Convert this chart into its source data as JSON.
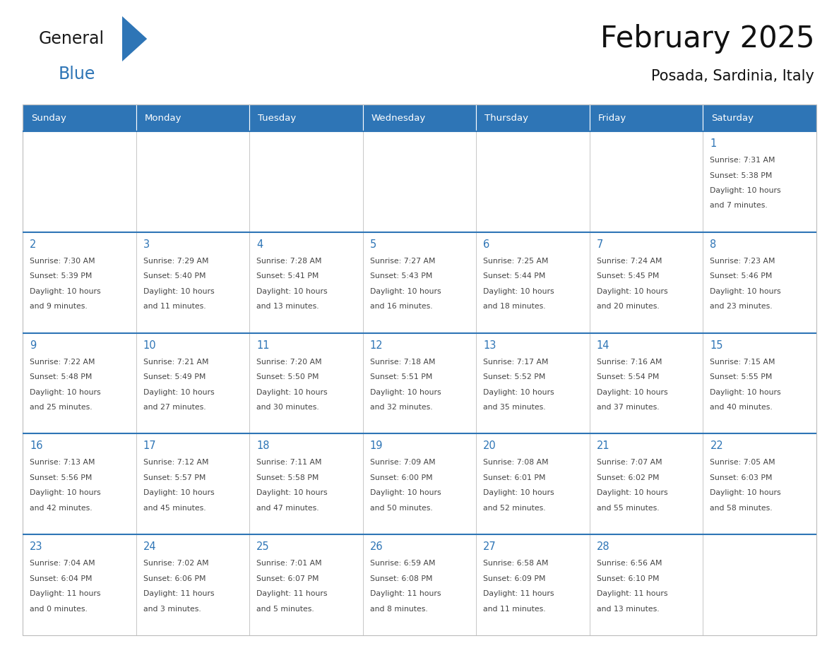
{
  "title": "February 2025",
  "subtitle": "Posada, Sardinia, Italy",
  "days_of_week": [
    "Sunday",
    "Monday",
    "Tuesday",
    "Wednesday",
    "Thursday",
    "Friday",
    "Saturday"
  ],
  "header_bg": "#2e75b6",
  "header_text": "#ffffff",
  "cell_bg": "#ffffff",
  "cell_border": "#bbbbbb",
  "day_number_color": "#2e75b6",
  "text_color": "#444444",
  "logo_general_color": "#1a1a1a",
  "logo_blue_color": "#2e75b6",
  "calendar_data": [
    [
      {
        "day": null,
        "info": null
      },
      {
        "day": null,
        "info": null
      },
      {
        "day": null,
        "info": null
      },
      {
        "day": null,
        "info": null
      },
      {
        "day": null,
        "info": null
      },
      {
        "day": null,
        "info": null
      },
      {
        "day": 1,
        "info": "Sunrise: 7:31 AM\nSunset: 5:38 PM\nDaylight: 10 hours\nand 7 minutes."
      }
    ],
    [
      {
        "day": 2,
        "info": "Sunrise: 7:30 AM\nSunset: 5:39 PM\nDaylight: 10 hours\nand 9 minutes."
      },
      {
        "day": 3,
        "info": "Sunrise: 7:29 AM\nSunset: 5:40 PM\nDaylight: 10 hours\nand 11 minutes."
      },
      {
        "day": 4,
        "info": "Sunrise: 7:28 AM\nSunset: 5:41 PM\nDaylight: 10 hours\nand 13 minutes."
      },
      {
        "day": 5,
        "info": "Sunrise: 7:27 AM\nSunset: 5:43 PM\nDaylight: 10 hours\nand 16 minutes."
      },
      {
        "day": 6,
        "info": "Sunrise: 7:25 AM\nSunset: 5:44 PM\nDaylight: 10 hours\nand 18 minutes."
      },
      {
        "day": 7,
        "info": "Sunrise: 7:24 AM\nSunset: 5:45 PM\nDaylight: 10 hours\nand 20 minutes."
      },
      {
        "day": 8,
        "info": "Sunrise: 7:23 AM\nSunset: 5:46 PM\nDaylight: 10 hours\nand 23 minutes."
      }
    ],
    [
      {
        "day": 9,
        "info": "Sunrise: 7:22 AM\nSunset: 5:48 PM\nDaylight: 10 hours\nand 25 minutes."
      },
      {
        "day": 10,
        "info": "Sunrise: 7:21 AM\nSunset: 5:49 PM\nDaylight: 10 hours\nand 27 minutes."
      },
      {
        "day": 11,
        "info": "Sunrise: 7:20 AM\nSunset: 5:50 PM\nDaylight: 10 hours\nand 30 minutes."
      },
      {
        "day": 12,
        "info": "Sunrise: 7:18 AM\nSunset: 5:51 PM\nDaylight: 10 hours\nand 32 minutes."
      },
      {
        "day": 13,
        "info": "Sunrise: 7:17 AM\nSunset: 5:52 PM\nDaylight: 10 hours\nand 35 minutes."
      },
      {
        "day": 14,
        "info": "Sunrise: 7:16 AM\nSunset: 5:54 PM\nDaylight: 10 hours\nand 37 minutes."
      },
      {
        "day": 15,
        "info": "Sunrise: 7:15 AM\nSunset: 5:55 PM\nDaylight: 10 hours\nand 40 minutes."
      }
    ],
    [
      {
        "day": 16,
        "info": "Sunrise: 7:13 AM\nSunset: 5:56 PM\nDaylight: 10 hours\nand 42 minutes."
      },
      {
        "day": 17,
        "info": "Sunrise: 7:12 AM\nSunset: 5:57 PM\nDaylight: 10 hours\nand 45 minutes."
      },
      {
        "day": 18,
        "info": "Sunrise: 7:11 AM\nSunset: 5:58 PM\nDaylight: 10 hours\nand 47 minutes."
      },
      {
        "day": 19,
        "info": "Sunrise: 7:09 AM\nSunset: 6:00 PM\nDaylight: 10 hours\nand 50 minutes."
      },
      {
        "day": 20,
        "info": "Sunrise: 7:08 AM\nSunset: 6:01 PM\nDaylight: 10 hours\nand 52 minutes."
      },
      {
        "day": 21,
        "info": "Sunrise: 7:07 AM\nSunset: 6:02 PM\nDaylight: 10 hours\nand 55 minutes."
      },
      {
        "day": 22,
        "info": "Sunrise: 7:05 AM\nSunset: 6:03 PM\nDaylight: 10 hours\nand 58 minutes."
      }
    ],
    [
      {
        "day": 23,
        "info": "Sunrise: 7:04 AM\nSunset: 6:04 PM\nDaylight: 11 hours\nand 0 minutes."
      },
      {
        "day": 24,
        "info": "Sunrise: 7:02 AM\nSunset: 6:06 PM\nDaylight: 11 hours\nand 3 minutes."
      },
      {
        "day": 25,
        "info": "Sunrise: 7:01 AM\nSunset: 6:07 PM\nDaylight: 11 hours\nand 5 minutes."
      },
      {
        "day": 26,
        "info": "Sunrise: 6:59 AM\nSunset: 6:08 PM\nDaylight: 11 hours\nand 8 minutes."
      },
      {
        "day": 27,
        "info": "Sunrise: 6:58 AM\nSunset: 6:09 PM\nDaylight: 11 hours\nand 11 minutes."
      },
      {
        "day": 28,
        "info": "Sunrise: 6:56 AM\nSunset: 6:10 PM\nDaylight: 11 hours\nand 13 minutes."
      },
      {
        "day": null,
        "info": null
      }
    ]
  ]
}
